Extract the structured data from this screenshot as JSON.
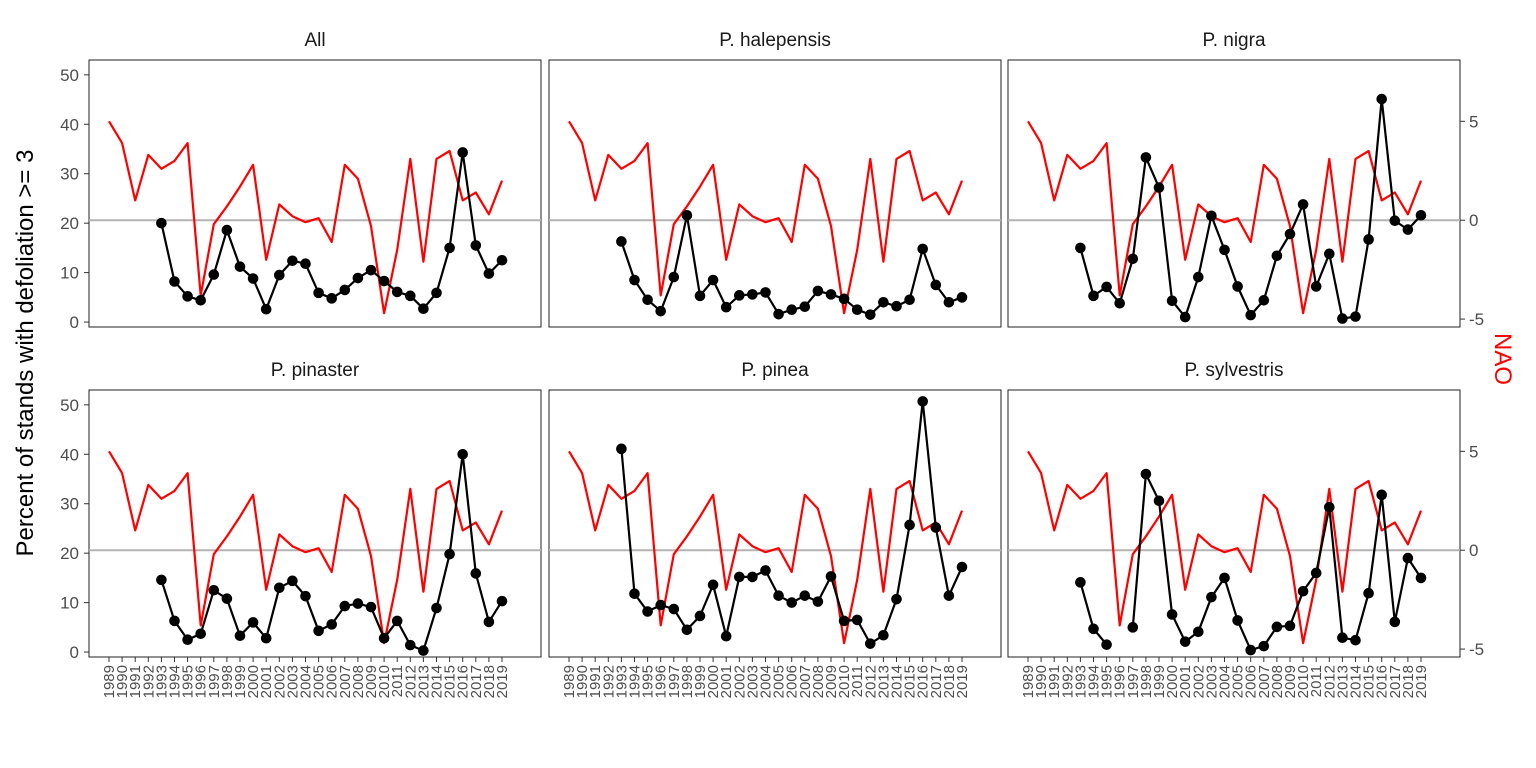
{
  "chart_data": {
    "type": "line",
    "ylabel": "Percent of stands with defoliation >= 3",
    "ylabel_secondary": "NAO",
    "ylim": [
      -1,
      53
    ],
    "ylim_secondary": [
      -5.4,
      8.1
    ],
    "yticks": [
      0,
      10,
      20,
      30,
      40,
      50
    ],
    "yticks_secondary": [
      -5,
      0,
      5
    ],
    "reference_line": {
      "axis": "NAO",
      "value": 0
    },
    "x": [
      1989,
      1990,
      1991,
      1992,
      1993,
      1994,
      1995,
      1996,
      1997,
      1998,
      1999,
      2000,
      2001,
      2002,
      2003,
      2004,
      2005,
      2006,
      2007,
      2008,
      2009,
      2010,
      2011,
      2012,
      2013,
      2014,
      2015,
      2016,
      2017,
      2018,
      2019
    ],
    "colors": {
      "defoliation": "#000000",
      "nao": "#ff0000",
      "reference": "#b3b3b3"
    },
    "nao_series": {
      "name": "NAO",
      "values": [
        5.0,
        3.9,
        1.0,
        3.3,
        2.6,
        3.0,
        3.9,
        -3.8,
        -0.2,
        0.7,
        1.7,
        2.8,
        -2.0,
        0.8,
        0.2,
        -0.1,
        0.1,
        -1.1,
        2.8,
        2.1,
        -0.3,
        -4.7,
        -1.5,
        3.1,
        -2.1,
        3.1,
        3.5,
        1.0,
        1.4,
        0.3,
        2.0
      ]
    },
    "panels": [
      {
        "title": "All",
        "series": [
          {
            "name": "",
            "values": [
              null,
              null,
              null,
              null,
              20.0,
              8.2,
              5.2,
              4.4,
              9.6,
              18.6,
              11.2,
              8.8,
              2.6,
              9.5,
              12.4,
              11.8,
              5.9,
              4.8,
              6.5,
              8.9,
              10.5,
              8.3,
              6.1,
              5.3,
              2.7,
              5.9,
              15.0,
              34.3,
              15.5,
              9.8,
              12.5
            ]
          }
        ]
      },
      {
        "title": "P. halepensis",
        "series": [
          {
            "name": "",
            "values": [
              null,
              null,
              null,
              null,
              16.3,
              8.5,
              4.5,
              2.2,
              9.1,
              21.6,
              5.3,
              8.5,
              3.0,
              5.4,
              5.6,
              6.0,
              1.6,
              2.5,
              3.1,
              6.3,
              5.6,
              4.7,
              2.5,
              1.5,
              4.0,
              3.2,
              4.5,
              14.8,
              7.5,
              4.0,
              5.0
            ]
          }
        ]
      },
      {
        "title": "P. nigra",
        "series": [
          {
            "name": "",
            "values": [
              null,
              null,
              null,
              null,
              15.0,
              5.3,
              7.1,
              3.8,
              12.8,
              33.3,
              27.2,
              4.3,
              1.0,
              9.1,
              21.5,
              14.6,
              7.2,
              1.4,
              4.4,
              13.4,
              17.8,
              23.8,
              7.2,
              13.8,
              0.7,
              1.1,
              16.7,
              45.1,
              20.5,
              18.7,
              21.6
            ]
          }
        ]
      },
      {
        "title": "P. pinaster",
        "series": [
          {
            "name": "",
            "values": [
              null,
              null,
              null,
              null,
              14.6,
              6.3,
              2.5,
              3.7,
              12.5,
              10.8,
              3.3,
              6.0,
              2.8,
              13.0,
              14.4,
              11.3,
              4.3,
              5.6,
              9.3,
              9.8,
              9.1,
              2.8,
              6.3,
              1.4,
              0.3,
              8.9,
              19.8,
              40.0,
              15.9,
              6.1,
              10.3
            ]
          }
        ]
      },
      {
        "title": "P. pinea",
        "series": [
          {
            "name": "",
            "values": [
              null,
              null,
              null,
              null,
              41.1,
              11.8,
              8.2,
              9.5,
              8.7,
              4.5,
              7.3,
              13.6,
              3.2,
              15.2,
              15.2,
              16.5,
              11.4,
              10.0,
              11.4,
              10.2,
              15.3,
              6.3,
              6.5,
              1.7,
              3.4,
              10.7,
              25.7,
              50.7,
              25.2,
              11.4,
              17.2
            ]
          }
        ]
      },
      {
        "title": "P. sylvestris",
        "series": [
          {
            "name": "",
            "values": [
              null,
              null,
              null,
              null,
              14.1,
              4.7,
              1.5,
              null,
              5.0,
              36.0,
              30.6,
              7.6,
              2.1,
              4.1,
              11.1,
              15.0,
              6.4,
              0.4,
              1.2,
              5.1,
              5.3,
              12.3,
              16.0,
              29.3,
              2.9,
              2.4,
              11.9,
              31.8,
              6.1,
              19.0,
              15.0
            ]
          }
        ]
      }
    ]
  }
}
